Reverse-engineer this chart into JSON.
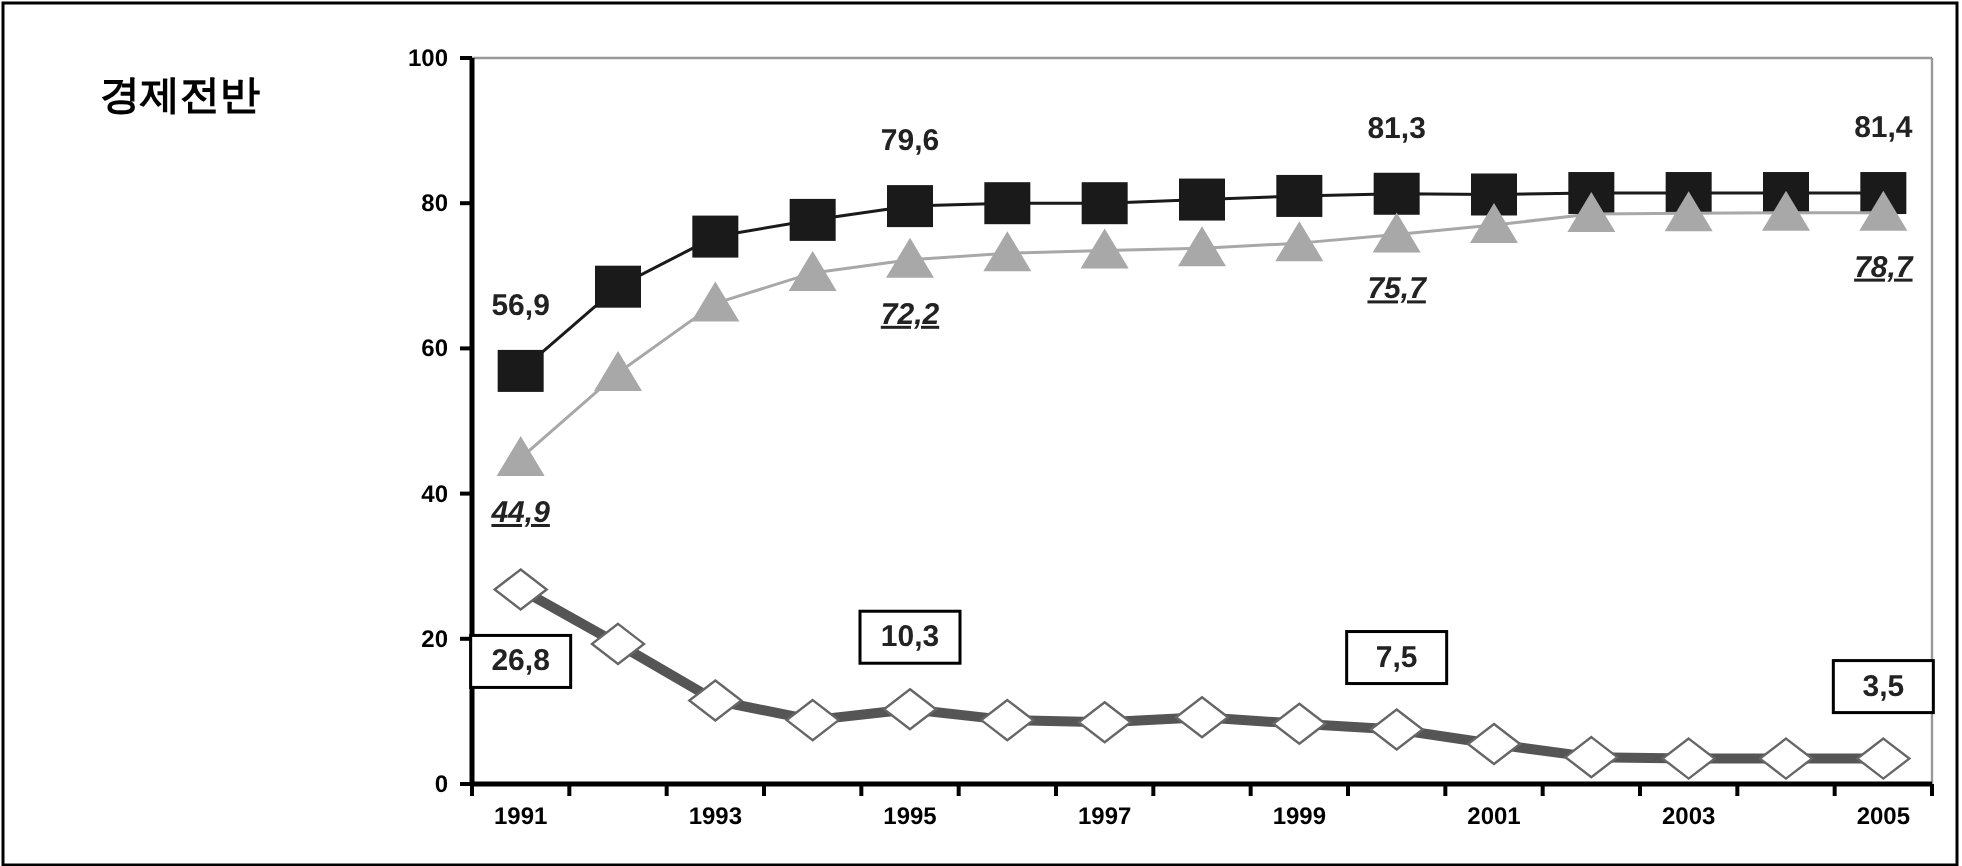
{
  "chart_data": {
    "type": "line",
    "title": "경제전반",
    "categories": [
      "1991",
      null,
      "1993",
      null,
      "1995",
      null,
      "1997",
      null,
      "1999",
      null,
      "2001",
      null,
      "2003",
      null,
      "2005"
    ],
    "ylim": [
      0,
      100
    ],
    "yticks": [
      0,
      20,
      40,
      60,
      80,
      100
    ],
    "grid": false,
    "series": [
      {
        "color": "#1a1a1a",
        "marker": "square",
        "values": [
          56.9,
          68.5,
          75.4,
          77.7,
          79.6,
          80.0,
          80.0,
          80.5,
          81.0,
          81.3,
          81.2,
          81.4,
          81.4,
          81.4,
          81.4
        ],
        "value_labels": [
          "56,9",
          null,
          null,
          null,
          "79,6",
          null,
          null,
          null,
          null,
          "81,3",
          null,
          null,
          null,
          null,
          "81,4"
        ]
      },
      {
        "color": "#a8a8a8",
        "marker": "triangle",
        "values": [
          44.9,
          56.6,
          66.2,
          70.4,
          72.2,
          73.1,
          73.5,
          73.8,
          74.5,
          75.7,
          77.0,
          78.5,
          78.6,
          78.7,
          78.7
        ],
        "value_labels": [
          "44,9",
          null,
          null,
          null,
          "72,2",
          null,
          null,
          null,
          null,
          "75,7",
          null,
          null,
          null,
          null,
          "78,7"
        ]
      },
      {
        "color": "#555555",
        "marker": "diamond",
        "values": [
          26.8,
          19.3,
          11.5,
          8.8,
          10.3,
          8.8,
          8.5,
          9.2,
          8.3,
          7.5,
          5.5,
          3.7,
          3.5,
          3.5,
          3.5
        ],
        "value_labels": [
          "26,8",
          null,
          null,
          null,
          "10,3",
          null,
          null,
          null,
          null,
          "7,5",
          null,
          null,
          null,
          null,
          "3,5"
        ]
      }
    ]
  }
}
